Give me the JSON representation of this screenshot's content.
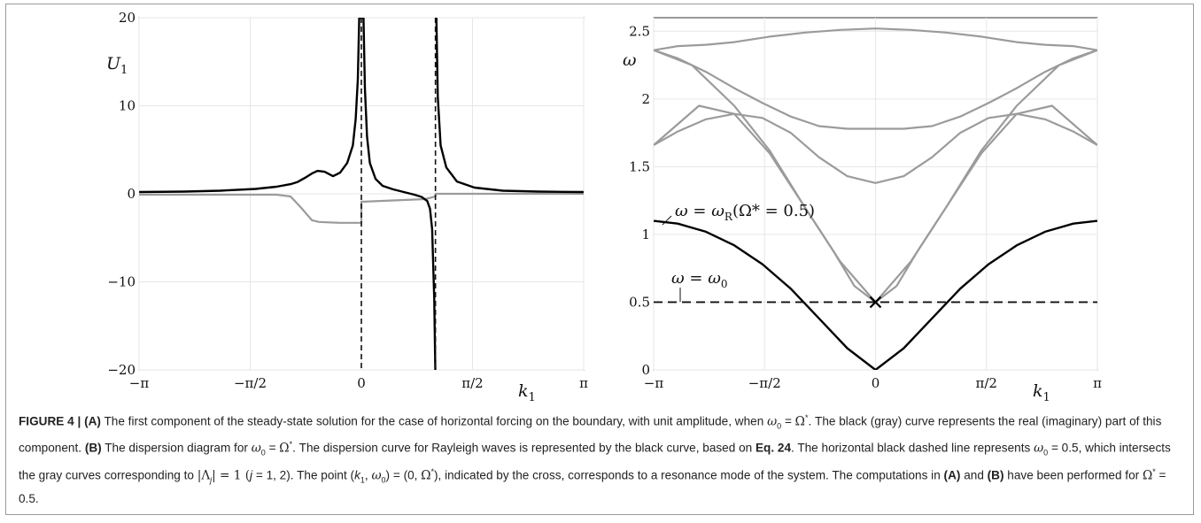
{
  "figure": {
    "panelA": {
      "ylabel_var": "U",
      "ylabel_sub": "1",
      "xlabel_var": "k",
      "xlabel_sub": "1",
      "yticks": [
        "20",
        "10",
        "0",
        "−10",
        "−20"
      ],
      "xticks": [
        "−π",
        "−π/2",
        "0",
        "π/2",
        "π"
      ]
    },
    "panelB": {
      "ylabel": "ω",
      "xlabel_var": "k",
      "xlabel_sub": "1",
      "yticks": [
        "2.5",
        "2",
        "1.5",
        "1",
        "0.5",
        "0"
      ],
      "xticks": [
        "−π",
        "−π/2",
        "0",
        "π/2",
        "π"
      ],
      "annotation_rayleigh": "ω = ω",
      "annotation_rayleigh_sub": "R",
      "annotation_rayleigh_tail": "(Ω* = 0.5)",
      "annotation_omega0": "ω = ω",
      "annotation_omega0_sub": "0"
    },
    "colors": {
      "real": "#000000",
      "imag": "#9b9b9b",
      "grid": "#e8e8e8"
    }
  },
  "chart_data": [
    {
      "type": "line",
      "panel": "A",
      "xlabel": "k1",
      "ylabel": "U1",
      "xlim": [
        -3.1416,
        3.1416
      ],
      "ylim": [
        -20,
        20
      ],
      "grid": true,
      "vlines_dashed": [
        0,
        1.047
      ],
      "series": [
        {
          "color": "black",
          "x": [
            -3.14,
            -2.5,
            -2.0,
            -1.5,
            -1.2,
            -1.0,
            -0.9,
            -0.8,
            -0.7,
            -0.62,
            -0.52,
            -0.4,
            -0.3,
            -0.2,
            -0.12,
            -0.08,
            -0.05,
            -0.03,
            0.03,
            0.05,
            0.08,
            0.12,
            0.2,
            0.3,
            0.45,
            0.6,
            0.75,
            0.85,
            0.93,
            0.97,
            1.0,
            1.03,
            1.045,
            1.06,
            1.08,
            1.12,
            1.2,
            1.35,
            1.6,
            2.0,
            2.5,
            3.14
          ],
          "y": [
            0.2,
            0.25,
            0.35,
            0.55,
            0.8,
            1.1,
            1.35,
            1.8,
            2.3,
            2.6,
            2.5,
            2.0,
            2.4,
            3.5,
            5.5,
            8.5,
            13,
            20,
            20,
            12,
            6.5,
            3.5,
            1.7,
            0.9,
            0.5,
            0.2,
            -0.1,
            -0.35,
            -0.8,
            -1.7,
            -4,
            -12,
            -20,
            20,
            11,
            5.5,
            3.0,
            1.4,
            0.7,
            0.35,
            0.25,
            0.2
          ]
        },
        {
          "color": "gray",
          "x": [
            -3.14,
            -1.2,
            -1.0,
            -0.85,
            -0.7,
            -0.6,
            -0.3,
            -0.05,
            0.0,
            0.0,
            0.3,
            0.6,
            0.9,
            1.047,
            1.047,
            3.14
          ],
          "y": [
            -0.1,
            -0.1,
            -0.3,
            -1.6,
            -3.0,
            -3.2,
            -3.3,
            -3.3,
            -3.3,
            -0.9,
            -0.8,
            -0.7,
            -0.6,
            -0.3,
            0.0,
            0.0
          ]
        }
      ]
    },
    {
      "type": "line",
      "panel": "B",
      "xlabel": "k1",
      "ylabel": "ω",
      "xlim": [
        -3.1416,
        3.1416
      ],
      "ylim": [
        0,
        2.6
      ],
      "grid": true,
      "hline_dashed": 0.5,
      "marker_cross": {
        "x": 0,
        "y": 0.5
      },
      "series": [
        {
          "name": "ω = ωR(Ω* = 0.5)",
          "color": "black",
          "x": [
            -3.14,
            -2.8,
            -2.4,
            -2.0,
            -1.6,
            -1.2,
            -0.8,
            -0.4,
            0.0,
            0.4,
            0.8,
            1.2,
            1.6,
            2.0,
            2.4,
            2.8,
            3.14
          ],
          "y": [
            1.1,
            1.08,
            1.02,
            0.92,
            0.78,
            0.6,
            0.38,
            0.16,
            0.0,
            0.16,
            0.38,
            0.6,
            0.78,
            0.92,
            1.02,
            1.08,
            1.1
          ]
        },
        {
          "color": "gray",
          "x": [
            -3.14,
            -2.6,
            -2.0,
            -1.5,
            -1.0,
            -0.6,
            -0.3,
            0.0,
            0.3,
            0.6,
            1.0,
            1.5,
            2.0,
            2.6,
            3.14
          ],
          "y": [
            2.36,
            2.25,
            1.95,
            1.62,
            1.2,
            0.88,
            0.62,
            0.5,
            0.62,
            0.88,
            1.2,
            1.62,
            1.95,
            2.25,
            2.36
          ]
        },
        {
          "color": "gray",
          "x": [
            -3.14,
            -2.8,
            -2.4,
            -2.0,
            -1.6,
            -1.2,
            -0.8,
            -0.4,
            0.0,
            0.4,
            0.8,
            1.2,
            1.6,
            2.0,
            2.4,
            2.8,
            3.14
          ],
          "y": [
            1.66,
            1.76,
            1.85,
            1.89,
            1.86,
            1.75,
            1.57,
            1.43,
            1.38,
            1.43,
            1.57,
            1.75,
            1.86,
            1.89,
            1.85,
            1.76,
            1.66
          ]
        },
        {
          "color": "gray",
          "x": [
            -3.14,
            -2.5,
            -2.0,
            -1.5,
            -1.0,
            -0.5,
            0.0,
            0.5,
            1.0,
            1.5,
            2.0,
            2.5,
            3.14
          ],
          "y": [
            1.66,
            1.95,
            1.89,
            1.6,
            1.2,
            0.8,
            0.5,
            0.8,
            1.2,
            1.6,
            1.89,
            1.95,
            1.66
          ]
        },
        {
          "color": "gray",
          "x": [
            -3.14,
            -2.8,
            -2.4,
            -2.0,
            -1.5,
            -1.0,
            -0.5,
            0.0,
            0.5,
            1.0,
            1.5,
            2.0,
            2.4,
            2.8,
            3.14
          ],
          "y": [
            2.36,
            2.39,
            2.4,
            2.42,
            2.46,
            2.49,
            2.51,
            2.52,
            2.51,
            2.49,
            2.46,
            2.42,
            2.4,
            2.39,
            2.36
          ]
        },
        {
          "color": "gray",
          "x": [
            -3.14,
            -2.8,
            -2.4,
            -2.0,
            -1.6,
            -1.2,
            -0.8,
            -0.4,
            0.0,
            0.4,
            0.8,
            1.2,
            1.6,
            2.0,
            2.4,
            2.8,
            3.14
          ],
          "y": [
            2.36,
            2.3,
            2.2,
            2.08,
            1.97,
            1.87,
            1.8,
            1.78,
            1.78,
            1.78,
            1.8,
            1.87,
            1.97,
            2.08,
            2.2,
            2.3,
            2.36
          ]
        }
      ]
    }
  ],
  "caption": {
    "label": "FIGURE 4 | ",
    "a": "(A)",
    "t1": " The first component of the steady-state solution for the case of horizontal forcing on the boundary, with unit amplitude, when ",
    "w0": "ω",
    "w0sub": "0",
    "eq": " = ",
    "Om": "Ω",
    "star": "*",
    "t2": ". The black (gray) curve represents the real (imaginary) part of this component. ",
    "b": "(B)",
    "t3": " The dispersion diagram for ",
    "t4": ". The dispersion curve for Rayleigh waves is represented by the black curve, based on ",
    "eqref": "Eq. 24",
    "t5": ". The horizontal black dashed line represents ",
    "t6": " = 0.5, which intersects the gray curves corresponding to ",
    "lam": "|Λ",
    "lamj": "j",
    "lamend": "| = 1 (",
    "jj": "j",
    "t7": " = 1, 2). The point (",
    "k1": "k",
    "k1sub": "1",
    "t8": ", ",
    "t9": ") = (0, ",
    "t10": "), indicated by the cross, corresponds to a resonance mode of the system. The computations in ",
    "t11": " and ",
    "t12": " have been performed for ",
    "t13": " = 0.5."
  }
}
